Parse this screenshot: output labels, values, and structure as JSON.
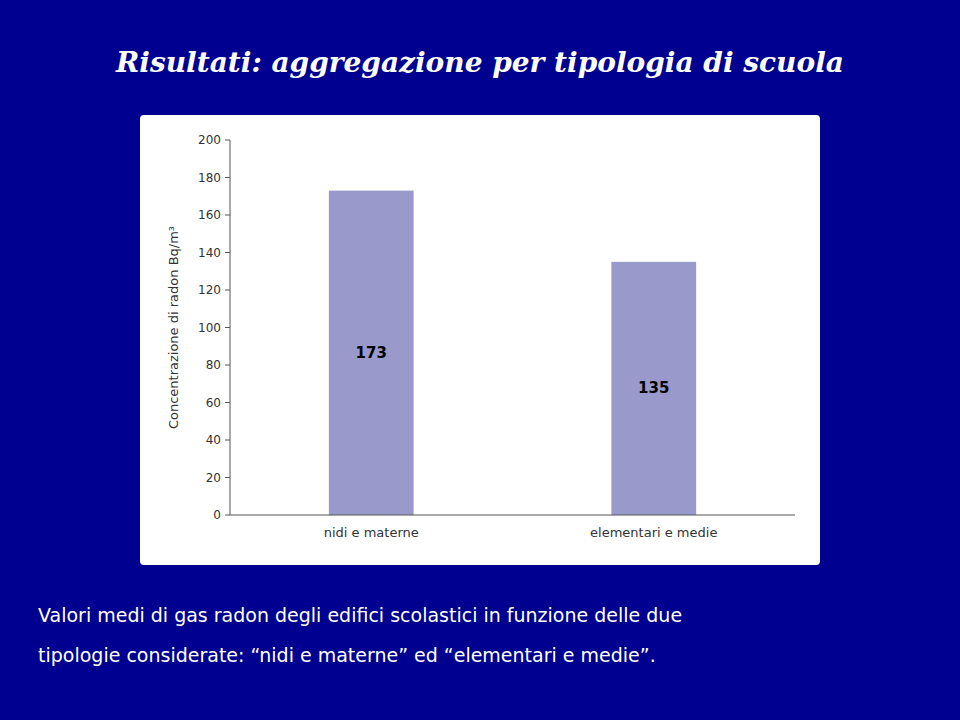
{
  "chart_data": {
    "type": "bar",
    "title": "Risultati: aggregazione per tipologia di scuola",
    "categories": [
      "nidi e materne",
      "elementari e medie"
    ],
    "values": [
      173,
      135
    ],
    "color": "#9999CC",
    "ylabel": "Concentrazione di radon Bq/m³",
    "ylim": [
      0,
      200
    ],
    "yticks": [
      0,
      20,
      40,
      60,
      80,
      100,
      120,
      140,
      160,
      180,
      200
    ],
    "data_labels": true,
    "grid": false,
    "annotations": [
      "Valori medi di gas radon degli edifici scolastici in funzione delle due",
      "tipologie considerate: “nidi e materne” ed “elementari e medie”."
    ]
  }
}
